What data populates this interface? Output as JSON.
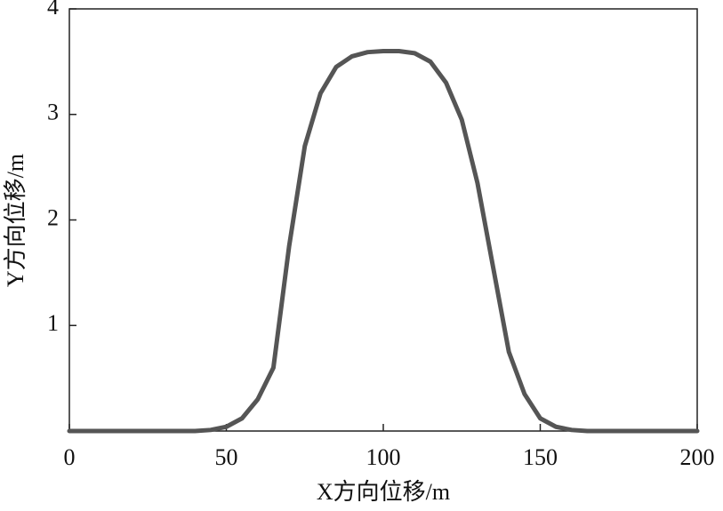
{
  "chart_data": {
    "type": "line",
    "x_label": "X方向位移/m",
    "y_label": "Y方向位移/m",
    "x": [
      0,
      5,
      10,
      15,
      20,
      25,
      30,
      35,
      40,
      45,
      50,
      55,
      60,
      65,
      70,
      75,
      80,
      85,
      90,
      95,
      100,
      105,
      110,
      115,
      120,
      125,
      130,
      135,
      140,
      145,
      150,
      155,
      160,
      165,
      170,
      175,
      180,
      185,
      190,
      195,
      200
    ],
    "series": [
      {
        "color": "#555555",
        "values": [
          0,
          0,
          0,
          0,
          0,
          0,
          0,
          0,
          0,
          0.01,
          0.04,
          0.12,
          0.3,
          0.6,
          1.75,
          2.7,
          3.2,
          3.45,
          3.55,
          3.59,
          3.6,
          3.6,
          3.58,
          3.5,
          3.3,
          2.95,
          2.35,
          1.55,
          0.75,
          0.35,
          0.12,
          0.04,
          0.01,
          0,
          0,
          0,
          0,
          0,
          0,
          0,
          0
        ]
      }
    ],
    "xlim": [
      0,
      200
    ],
    "ylim": [
      0,
      4
    ],
    "xticks": [
      0,
      50,
      100,
      150,
      200
    ],
    "yticks": [
      1,
      2,
      3,
      4
    ]
  }
}
